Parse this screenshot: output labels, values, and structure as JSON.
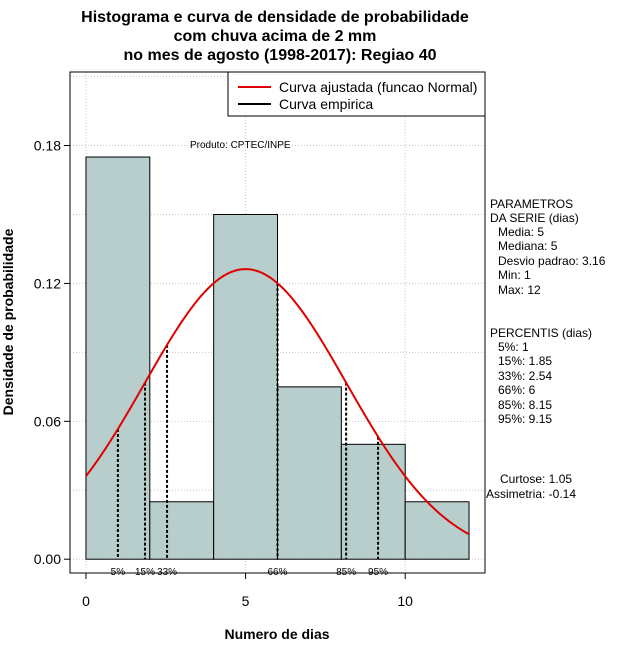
{
  "chart_data": {
    "type": "bar",
    "title_lines": [
      "Histograma e curva de densidade de probabilidade",
      "com chuva acima de 2 mm",
      "no mes de agosto (1998-2017): Regiao 40"
    ],
    "xlabel": "Numero de dias",
    "ylabel": "Densidade de probabilidade",
    "xlim": [
      -0.5,
      12.5
    ],
    "ylim": [
      -0.006,
      0.212
    ],
    "x_ticks": [
      0,
      5,
      10
    ],
    "y_ticks": [
      0.0,
      0.06,
      0.12,
      0.18
    ],
    "y_tick_labels": [
      "0.00",
      "0.06",
      "0.12",
      "0.18"
    ],
    "bins": [
      {
        "x0": 0,
        "x1": 2,
        "density": 0.175
      },
      {
        "x0": 2,
        "x1": 4,
        "density": 0.025
      },
      {
        "x0": 4,
        "x1": 6,
        "density": 0.15
      },
      {
        "x0": 6,
        "x1": 8,
        "density": 0.075
      },
      {
        "x0": 8,
        "x1": 10,
        "density": 0.05
      },
      {
        "x0": 10,
        "x1": 12,
        "density": 0.025
      }
    ],
    "fit_curve": {
      "name": "Curva ajustada (funcao Normal)",
      "mean": 5,
      "sd": 3.16,
      "x_range": [
        0,
        12
      ],
      "color": "#e00000"
    },
    "empirical_curve": {
      "name": "Curva empirica",
      "color": "#000000"
    },
    "percentile_lines": [
      {
        "label": "5%",
        "x": 1
      },
      {
        "label": "15%",
        "x": 1.85
      },
      {
        "label": "33%",
        "x": 2.54
      },
      {
        "label": "66%",
        "x": 6
      },
      {
        "label": "85%",
        "x": 8.15
      },
      {
        "label": "95%",
        "x": 9.15
      }
    ],
    "bar_color": "#b7cecc",
    "grid": true,
    "legend_position": "top-right"
  },
  "annotations": {
    "produto": "Produto: CPTEC/INPE",
    "parametros_title": [
      "PARAMETROS",
      "DA SERIE (dias)"
    ],
    "parametros": [
      "Media: 5",
      "Mediana: 5",
      "Desvio padrao: 3.16",
      "Min: 1",
      "Max: 12"
    ],
    "percentis_title": "PERCENTIS (dias)",
    "percentis": [
      "5%: 1",
      "15%: 1.85",
      "33%: 2.54",
      "66%: 6",
      "85%: 8.15",
      "95%: 9.15"
    ],
    "curtose": "Curtose: 1.05",
    "assimetria": "Assimetria: -0.14"
  }
}
